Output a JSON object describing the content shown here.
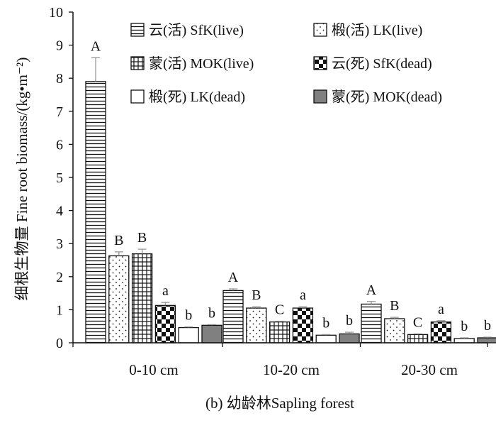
{
  "chart_data": {
    "type": "bar",
    "caption": "(b) 幼龄林Sapling forest",
    "ylabel": "细根生物量  Fine root biomass/(kg•m⁻²)",
    "ylim": [
      0,
      10
    ],
    "yticks": [
      "0",
      "1",
      "2",
      "3",
      "4",
      "5",
      "6",
      "7",
      "8",
      "9",
      "10"
    ],
    "categories": [
      "0-10 cm",
      "10-20 cm",
      "20-30 cm"
    ],
    "series": [
      {
        "name": "云(活) SfK(live)",
        "pattern": "hstripe",
        "values": [
          7.9,
          1.58,
          1.17
        ],
        "errors": [
          0.72,
          0.05,
          0.08
        ],
        "labels": [
          "A",
          "A",
          "A"
        ]
      },
      {
        "name": "椴(活) LK(live)",
        "pattern": "dots",
        "values": [
          2.63,
          1.05,
          0.73
        ],
        "errors": [
          0.12,
          0.04,
          0.04
        ],
        "labels": [
          "B",
          "B",
          "B"
        ]
      },
      {
        "name": "蒙(活) MOK(live)",
        "pattern": "grid",
        "values": [
          2.69,
          0.63,
          0.25
        ],
        "errors": [
          0.14,
          0.02,
          0.02
        ],
        "labels": [
          "B",
          "C",
          "C"
        ]
      },
      {
        "name": "云(死) SfK(dead)",
        "pattern": "checker",
        "values": [
          1.13,
          1.05,
          0.63
        ],
        "errors": [
          0.09,
          0.04,
          0.04
        ],
        "labels": [
          "a",
          "a",
          "a"
        ]
      },
      {
        "name": "椴(死) LK(dead)",
        "pattern": "white",
        "values": [
          0.46,
          0.23,
          0.13
        ],
        "errors": [
          0.02,
          0.02,
          0.02
        ],
        "labels": [
          "b",
          "b",
          "b"
        ]
      },
      {
        "name": "蒙(死) MOK(dead)",
        "pattern": "gray",
        "values": [
          0.53,
          0.27,
          0.15
        ],
        "errors": [
          0.02,
          0.05,
          0.02
        ],
        "labels": [
          "b",
          "b",
          "b"
        ]
      }
    ],
    "legend_position": "top-right",
    "colors": {
      "fill": "#ffffff",
      "gray_fill": "#808080",
      "stroke": "#111111",
      "error_bar": "#909090"
    }
  }
}
